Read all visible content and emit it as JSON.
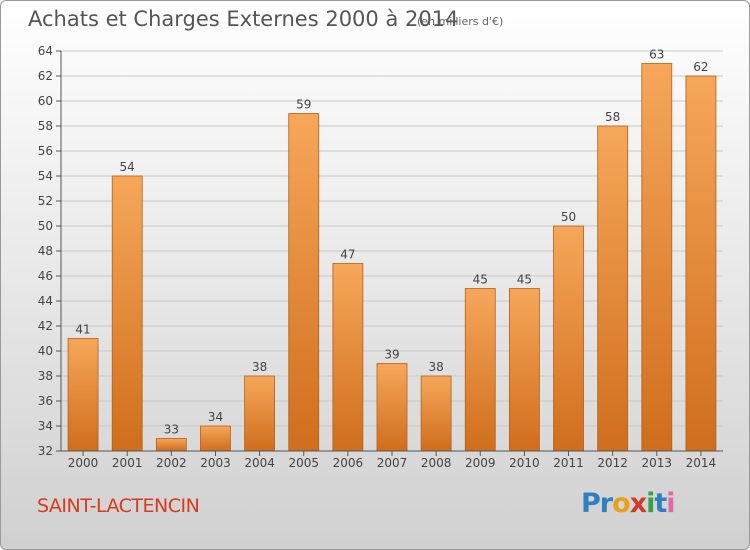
{
  "header": {
    "title": "Achats et Charges Externes 2000 à 2014",
    "unit": "(en milliers d'€)"
  },
  "footer": {
    "commune": "SAINT-LACTENCIN",
    "logo_letters": [
      "P",
      "r",
      "o",
      "x",
      "i",
      "t",
      "i"
    ],
    "logo_colors": [
      "#2f7fc1",
      "#2f7fc1",
      "#e9a01b",
      "#d23a2a",
      "#3aa14a",
      "#2f7fc1",
      "#e06aa8"
    ]
  },
  "colors": {
    "bar_top": "#f6a75a",
    "bar_bottom": "#cf6e1c",
    "bar_edge": "#b95f16",
    "axis": "#555555",
    "grid": "#c8c8c8",
    "label": "#444444"
  },
  "chart_data": {
    "type": "bar",
    "title": "Achats et Charges Externes 2000 à 2014",
    "subtitle": "(en milliers d'€)",
    "categories": [
      "2000",
      "2001",
      "2002",
      "2003",
      "2004",
      "2005",
      "2006",
      "2007",
      "2008",
      "2009",
      "2010",
      "2011",
      "2012",
      "2013",
      "2014"
    ],
    "values": [
      41,
      54,
      33,
      34,
      38,
      59,
      47,
      39,
      38,
      45,
      45,
      50,
      58,
      63,
      62
    ],
    "ylim": [
      32,
      64
    ],
    "yticks": [
      32,
      34,
      36,
      38,
      40,
      42,
      44,
      46,
      48,
      50,
      52,
      54,
      56,
      58,
      60,
      62,
      64
    ],
    "grid": true,
    "data_labels": true
  }
}
